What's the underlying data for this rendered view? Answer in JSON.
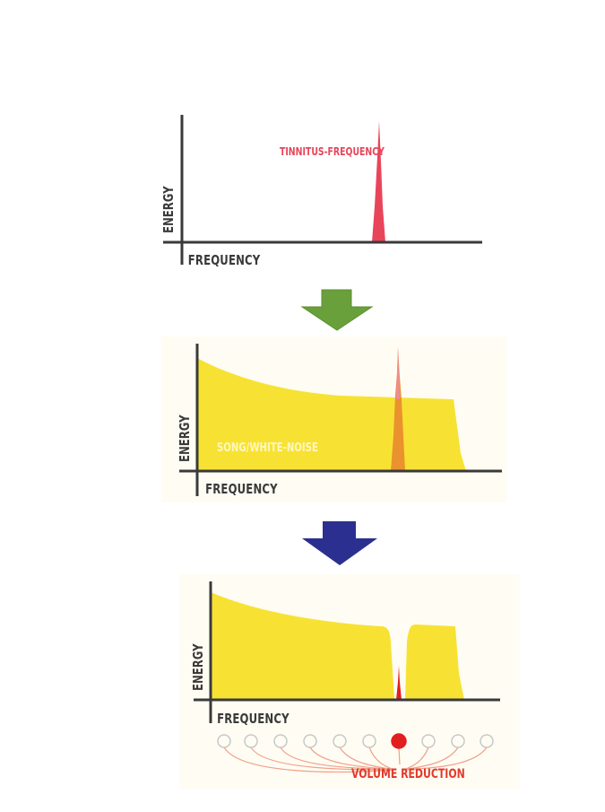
{
  "panel1": {
    "y_axis_label": "ENERGY",
    "x_axis_label": "FREQUENCY",
    "peak_label": "TINNITUS-FREQUENCY"
  },
  "panel2": {
    "y_axis_label": "ENERGY",
    "x_axis_label": "FREQUENCY",
    "noise_label": "SONG/WHITE-NOISE"
  },
  "panel3": {
    "y_axis_label": "ENERGY",
    "x_axis_label": "FREQUENCY",
    "reduction_label": "VOLUME REDUCTION"
  },
  "arrows": {
    "first_color": "#6aa03b",
    "second_color": "#2b2f8f"
  },
  "colors": {
    "tinnitus": "#e8455a",
    "noise": "#f7e234",
    "overlap": "#e8892e",
    "axis": "#3a3a3a"
  }
}
